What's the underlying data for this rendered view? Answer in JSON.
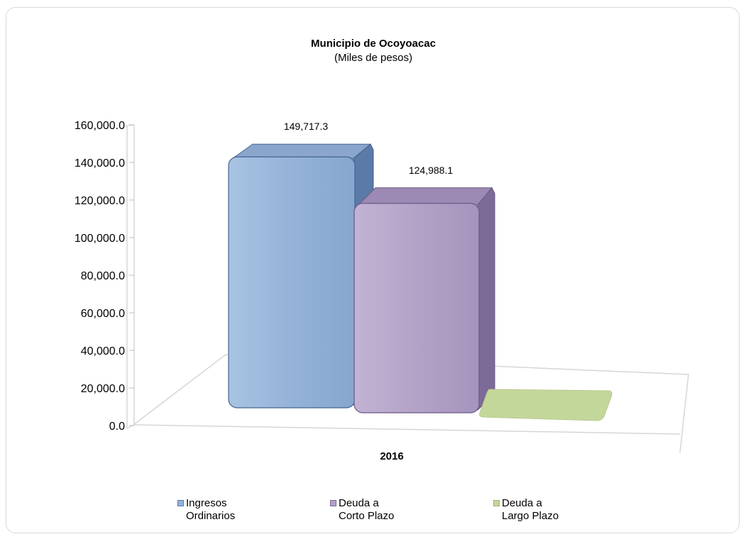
{
  "chart_data": {
    "type": "bar",
    "title": "Municipio  de Ocoyoacac",
    "subtitle": "(Miles de pesos)",
    "categories": [
      "2016"
    ],
    "series": [
      {
        "name": "Ingresos Ordinarios",
        "legend_lines": [
          "Ingresos",
          "Ordinarios"
        ],
        "values": [
          149717.3
        ],
        "label": "149,717.3",
        "color": "#95b3d7"
      },
      {
        "name": "Deuda a Corto Plazo",
        "legend_lines": [
          "Deuda a",
          "Corto Plazo"
        ],
        "values": [
          124988.1
        ],
        "label": "124,988.1",
        "color": "#b3a2c7"
      },
      {
        "name": "Deuda a Largo Plazo",
        "legend_lines": [
          "Deuda a",
          "Largo Plazo"
        ],
        "values": [
          0
        ],
        "label": "",
        "color": "#c4d79b"
      }
    ],
    "ylim": [
      0,
      160000
    ],
    "yticks": [
      "0.0",
      "20,000.0",
      "40,000.0",
      "60,000.0",
      "80,000.0",
      "100,000.0",
      "120,000.0",
      "140,000.0",
      "160,000.0"
    ],
    "grid": false,
    "legend_position": "bottom"
  }
}
